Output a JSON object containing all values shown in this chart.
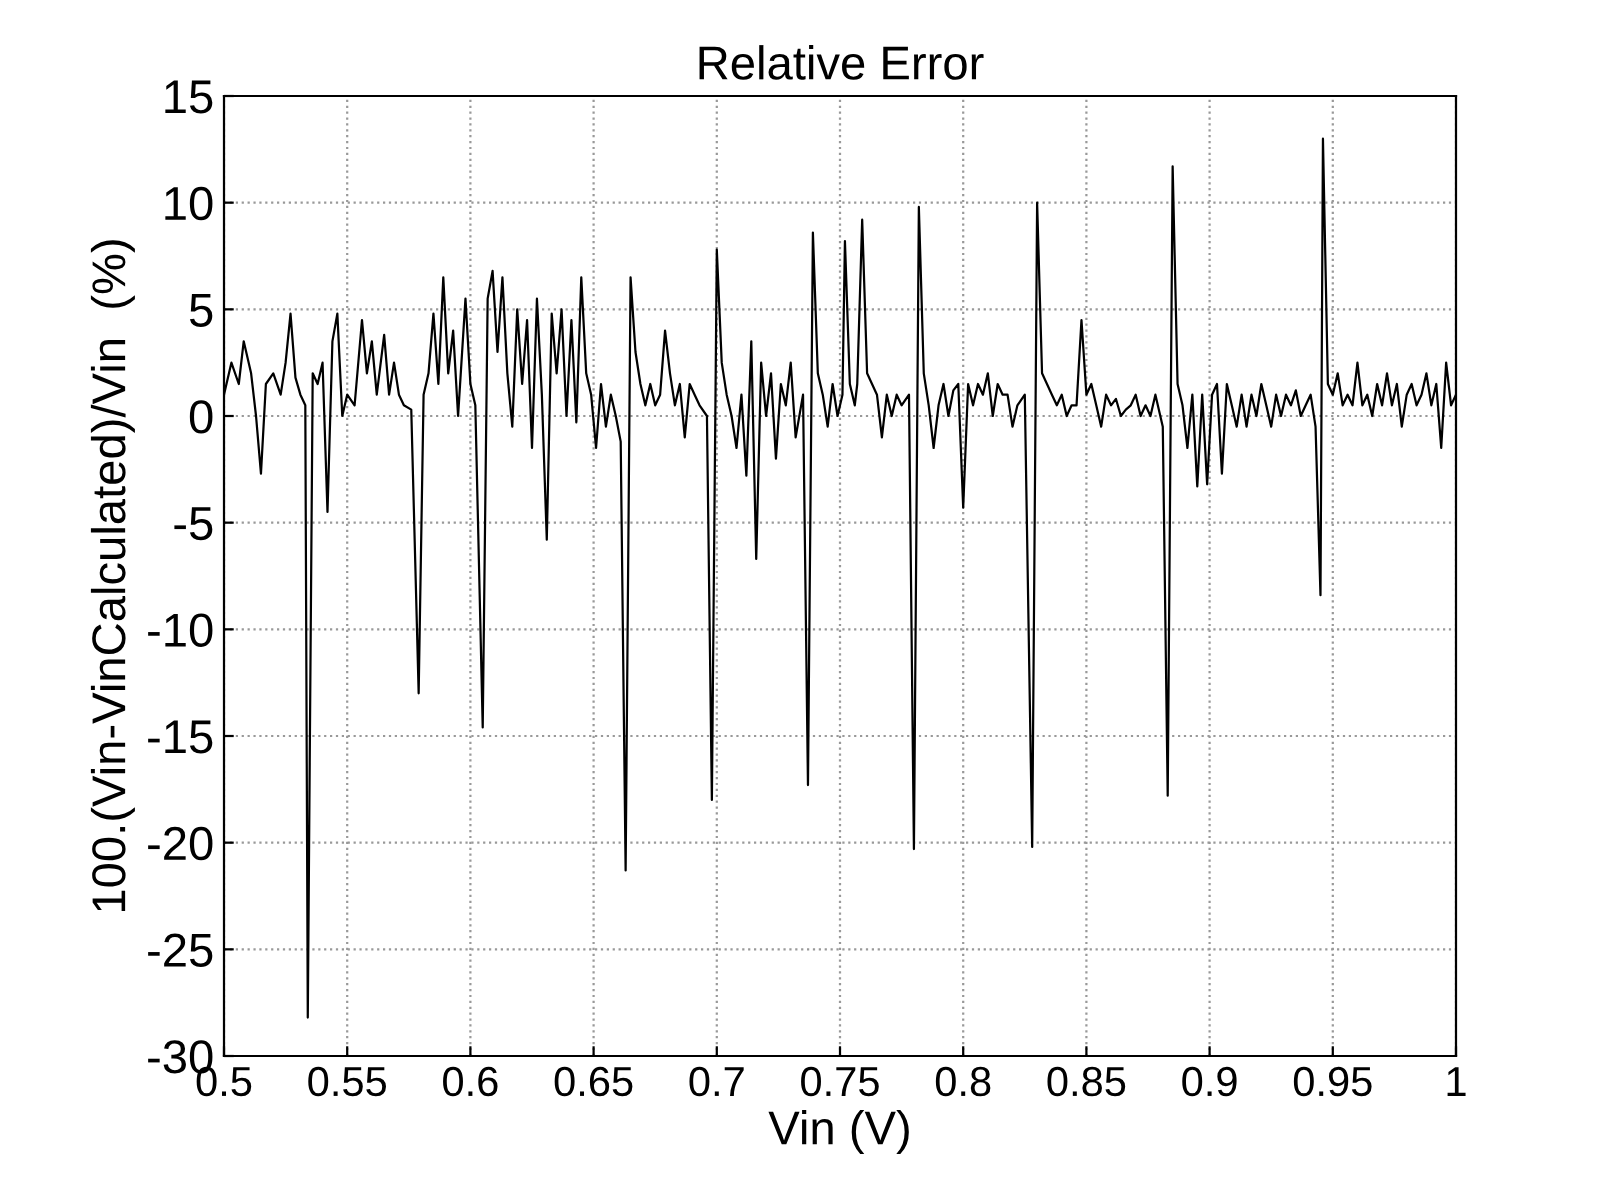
{
  "chart_data": {
    "type": "line",
    "title": "Relative Error",
    "xlabel": "Vin (V)",
    "ylabel": "100.(Vin-VinCalculated)/Vin  (%)",
    "xlim": [
      0.5,
      1
    ],
    "xticks": [
      0.5,
      0.55,
      0.6,
      0.65,
      0.7,
      0.75,
      0.8,
      0.85,
      0.9,
      0.95,
      1
    ],
    "ylim": [
      -30,
      15
    ],
    "yticks": [
      -30,
      -25,
      -20,
      -15,
      -10,
      -5,
      0,
      5,
      10,
      15
    ],
    "grid": true,
    "series": [
      {
        "color": "#000000",
        "x": [
          0.5,
          0.503,
          0.506,
          0.508,
          0.511,
          0.513,
          0.515,
          0.517,
          0.52,
          0.523,
          0.525,
          0.527,
          0.529,
          0.531,
          0.533,
          0.534,
          0.536,
          0.538,
          0.54,
          0.542,
          0.544,
          0.546,
          0.548,
          0.55,
          0.553,
          0.556,
          0.558,
          0.56,
          0.562,
          0.565,
          0.567,
          0.569,
          0.571,
          0.573,
          0.576,
          0.579,
          0.581,
          0.583,
          0.585,
          0.587,
          0.589,
          0.591,
          0.593,
          0.595,
          0.598,
          0.6,
          0.602,
          0.605,
          0.607,
          0.609,
          0.611,
          0.613,
          0.615,
          0.617,
          0.619,
          0.621,
          0.623,
          0.625,
          0.627,
          0.629,
          0.631,
          0.633,
          0.635,
          0.637,
          0.639,
          0.641,
          0.643,
          0.645,
          0.647,
          0.649,
          0.651,
          0.653,
          0.655,
          0.657,
          0.659,
          0.661,
          0.663,
          0.665,
          0.667,
          0.669,
          0.671,
          0.673,
          0.675,
          0.677,
          0.679,
          0.681,
          0.683,
          0.685,
          0.687,
          0.689,
          0.691,
          0.693,
          0.696,
          0.698,
          0.7,
          0.702,
          0.704,
          0.706,
          0.708,
          0.71,
          0.712,
          0.714,
          0.716,
          0.718,
          0.72,
          0.722,
          0.724,
          0.726,
          0.728,
          0.73,
          0.732,
          0.735,
          0.737,
          0.739,
          0.741,
          0.743,
          0.745,
          0.747,
          0.749,
          0.751,
          0.752,
          0.754,
          0.756,
          0.757,
          0.759,
          0.761,
          0.763,
          0.765,
          0.767,
          0.769,
          0.771,
          0.773,
          0.775,
          0.778,
          0.78,
          0.782,
          0.784,
          0.786,
          0.788,
          0.79,
          0.792,
          0.794,
          0.796,
          0.798,
          0.8,
          0.802,
          0.804,
          0.806,
          0.808,
          0.81,
          0.812,
          0.814,
          0.816,
          0.818,
          0.82,
          0.822,
          0.825,
          0.828,
          0.83,
          0.832,
          0.834,
          0.836,
          0.838,
          0.84,
          0.842,
          0.844,
          0.846,
          0.848,
          0.85,
          0.852,
          0.854,
          0.856,
          0.858,
          0.86,
          0.862,
          0.864,
          0.866,
          0.868,
          0.87,
          0.872,
          0.874,
          0.876,
          0.878,
          0.881,
          0.883,
          0.885,
          0.887,
          0.889,
          0.891,
          0.893,
          0.895,
          0.897,
          0.899,
          0.901,
          0.903,
          0.905,
          0.907,
          0.909,
          0.911,
          0.913,
          0.915,
          0.917,
          0.919,
          0.921,
          0.923,
          0.925,
          0.927,
          0.929,
          0.931,
          0.933,
          0.935,
          0.937,
          0.939,
          0.941,
          0.943,
          0.945,
          0.946,
          0.948,
          0.95,
          0.952,
          0.954,
          0.956,
          0.958,
          0.96,
          0.962,
          0.964,
          0.966,
          0.968,
          0.97,
          0.972,
          0.974,
          0.976,
          0.978,
          0.98,
          0.982,
          0.984,
          0.986,
          0.988,
          0.99,
          0.992,
          0.994,
          0.996,
          0.998,
          1.0
        ],
        "values": [
          1.0,
          2.5,
          1.5,
          3.5,
          2.0,
          0.0,
          -2.7,
          1.5,
          2.0,
          1.0,
          2.5,
          4.8,
          1.8,
          1.0,
          0.5,
          -28.2,
          2.0,
          1.5,
          2.5,
          -4.5,
          3.5,
          4.8,
          0.0,
          1.0,
          0.5,
          4.5,
          2.0,
          3.5,
          1.0,
          3.8,
          1.0,
          2.5,
          1.0,
          0.5,
          0.3,
          -13.0,
          1.0,
          2.0,
          4.8,
          1.5,
          6.5,
          2.0,
          4.0,
          0.0,
          5.5,
          1.5,
          0.5,
          -14.6,
          5.5,
          6.8,
          3.0,
          6.5,
          2.0,
          -0.5,
          5.0,
          1.5,
          4.5,
          -1.5,
          5.5,
          1.0,
          -5.8,
          4.8,
          2.0,
          5.0,
          0.0,
          4.5,
          -0.3,
          6.5,
          2.0,
          1.0,
          -1.5,
          1.5,
          -0.5,
          1.0,
          0.0,
          -1.2,
          -21.3,
          6.5,
          3.0,
          1.5,
          0.5,
          1.5,
          0.5,
          1.0,
          4.0,
          2.0,
          0.5,
          1.5,
          -1.0,
          1.5,
          1.0,
          0.5,
          0.0,
          -18.0,
          7.8,
          2.5,
          1.0,
          0.0,
          -1.5,
          1.0,
          -2.8,
          3.5,
          -6.7,
          2.5,
          0.0,
          2.0,
          -2.0,
          1.5,
          0.5,
          2.5,
          -1.0,
          1.0,
          -17.3,
          8.6,
          2.0,
          1.0,
          -0.5,
          1.5,
          0.0,
          1.0,
          8.2,
          1.5,
          0.5,
          1.5,
          9.2,
          2.0,
          1.5,
          1.0,
          -1.0,
          1.0,
          0.0,
          1.0,
          0.5,
          1.0,
          -20.3,
          9.8,
          2.0,
          0.5,
          -1.5,
          0.5,
          1.5,
          0.0,
          1.2,
          1.5,
          -4.3,
          1.5,
          0.5,
          1.5,
          1.0,
          2.0,
          0.0,
          1.5,
          1.0,
          1.0,
          -0.5,
          0.5,
          1.0,
          -20.2,
          10.0,
          2.0,
          1.5,
          1.0,
          0.5,
          1.0,
          0.0,
          0.5,
          0.5,
          4.5,
          1.0,
          1.5,
          0.5,
          -0.5,
          1.0,
          0.5,
          0.8,
          0.0,
          0.3,
          0.5,
          1.0,
          0.0,
          0.5,
          0.0,
          1.0,
          -0.5,
          -17.8,
          11.7,
          1.5,
          0.5,
          -1.5,
          1.0,
          -3.3,
          1.0,
          -3.2,
          1.0,
          1.5,
          -2.7,
          1.5,
          0.5,
          -0.5,
          1.0,
          -0.5,
          1.0,
          0.0,
          1.5,
          0.5,
          -0.5,
          1.0,
          0.0,
          1.0,
          0.5,
          1.2,
          0.0,
          0.5,
          1.0,
          -0.5,
          -8.4,
          13.0,
          1.5,
          1.0,
          2.0,
          0.5,
          1.0,
          0.5,
          2.5,
          0.5,
          1.0,
          0.0,
          1.5,
          0.5,
          2.0,
          0.5,
          1.5,
          -0.5,
          1.0,
          1.5,
          0.5,
          1.0,
          2.0,
          0.5,
          1.5,
          -1.5,
          2.5,
          0.5,
          1.0
        ]
      }
    ]
  }
}
